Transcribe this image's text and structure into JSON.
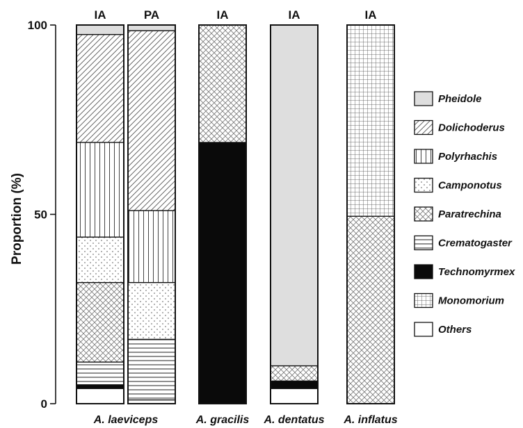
{
  "chart_data": {
    "type": "bar",
    "stacked": true,
    "ylabel": "Proportion (%)",
    "ylim": [
      0,
      100
    ],
    "yticks": [
      0,
      50,
      100
    ],
    "legend_position": "right",
    "series_names": [
      "Pheidole",
      "Dolichoderus",
      "Polyrhachis",
      "Camponotus",
      "Paratrechina",
      "Crematogaster",
      "Technomyrmex",
      "Monomorium",
      "Others"
    ],
    "series_patterns": [
      "solid-gray",
      "diagonal",
      "vertical",
      "dots",
      "crosshatch",
      "horizontal",
      "solid-black",
      "grid",
      "white"
    ],
    "stack_order": [
      "Others",
      "Technomyrmex",
      "Crematogaster",
      "Paratrechina",
      "Camponotus",
      "Polyrhachis",
      "Dolichoderus",
      "Monomorium",
      "Pheidole"
    ],
    "groups": [
      {
        "label": "A. laeviceps",
        "bars": [
          "IA",
          "PA"
        ]
      },
      {
        "label": "A. gracilis",
        "bars": [
          "IA"
        ]
      },
      {
        "label": "A. dentatus",
        "bars": [
          "IA"
        ]
      },
      {
        "label": "A. inflatus",
        "bars": [
          "IA"
        ]
      }
    ],
    "bars": [
      {
        "group": "A. laeviceps",
        "label": "IA",
        "segments": {
          "Others": 4,
          "Technomyrmex": 1,
          "Crematogaster": 6,
          "Paratrechina": 21,
          "Camponotus": 12,
          "Polyrhachis": 25,
          "Dolichoderus": 28.5,
          "Monomorium": 0,
          "Pheidole": 2.5
        }
      },
      {
        "group": "A. laeviceps",
        "label": "PA",
        "segments": {
          "Others": 1,
          "Technomyrmex": 0,
          "Crematogaster": 16,
          "Paratrechina": 0,
          "Camponotus": 15,
          "Polyrhachis": 19,
          "Dolichoderus": 47.5,
          "Monomorium": 0,
          "Pheidole": 1.5
        }
      },
      {
        "group": "A. gracilis",
        "label": "IA",
        "segments": {
          "Others": 0,
          "Technomyrmex": 69,
          "Crematogaster": 0,
          "Paratrechina": 31,
          "Camponotus": 0,
          "Polyrhachis": 0,
          "Dolichoderus": 0,
          "Monomorium": 0,
          "Pheidole": 0
        }
      },
      {
        "group": "A. dentatus",
        "label": "IA",
        "segments": {
          "Others": 4,
          "Technomyrmex": 2,
          "Crematogaster": 0,
          "Paratrechina": 4,
          "Camponotus": 0,
          "Polyrhachis": 0,
          "Dolichoderus": 0,
          "Monomorium": 0,
          "Pheidole": 90
        }
      },
      {
        "group": "A. inflatus",
        "label": "IA",
        "segments": {
          "Others": 0,
          "Technomyrmex": 0,
          "Crematogaster": 0,
          "Paratrechina": 49.5,
          "Camponotus": 0,
          "Polyrhachis": 0,
          "Dolichoderus": 0,
          "Monomorium": 50.5,
          "Pheidole": 0
        }
      }
    ]
  }
}
